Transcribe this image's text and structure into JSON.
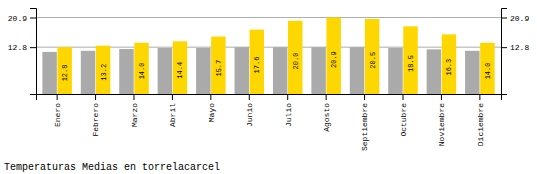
{
  "chart_data": {
    "type": "bar",
    "title": "Temperaturas Medias en torrelacarcel",
    "categories": [
      "Enero",
      "Febrero",
      "Marzo",
      "Abril",
      "Mayo",
      "Junio",
      "Julio",
      "Agosto",
      "Septiembre",
      "Octubre",
      "Noviembre",
      "Diciembre"
    ],
    "series": [
      {
        "color": "#AAAAAA",
        "values": [
          11.5,
          11.8,
          12.3,
          12.6,
          12.6,
          12.8,
          12.8,
          12.8,
          12.8,
          12.6,
          12.2,
          11.8
        ]
      },
      {
        "color": "#FFD700",
        "values": [
          12.8,
          13.2,
          14.0,
          14.4,
          15.7,
          17.6,
          20.0,
          20.9,
          20.5,
          18.5,
          16.3,
          14.0
        ],
        "data_labels": true,
        "value_labels": [
          "12.8",
          "13.2",
          "14.0",
          "14.4",
          "15.7",
          "17.6",
          "20.0",
          "20.9",
          "20.5",
          "18.5",
          "16.3",
          "14.0"
        ]
      }
    ],
    "ylim": [
      0,
      23.5
    ],
    "yticks": [
      12.8,
      20.9
    ],
    "y2lim": [
      0,
      23.5
    ],
    "y2ticks": [
      12.8,
      20.9
    ],
    "grid": true
  }
}
